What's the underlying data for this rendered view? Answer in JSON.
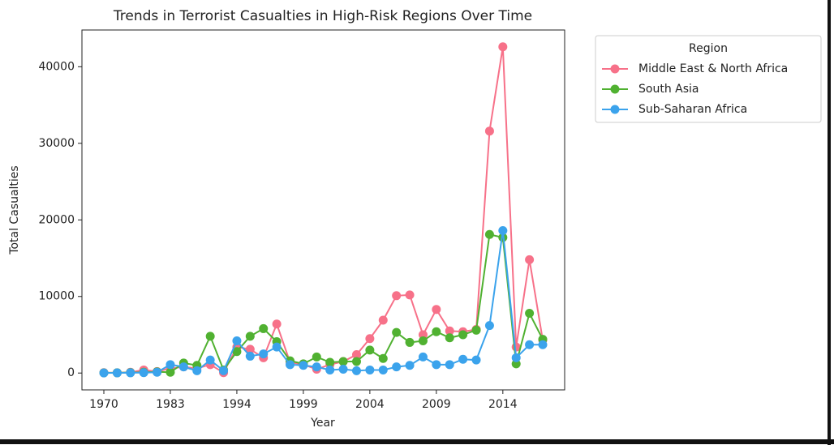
{
  "chart_data": {
    "type": "line",
    "title": "Trends in Terrorist Casualties in High-Risk Regions Over Time",
    "xlabel": "Year",
    "ylabel": "Total Casualties",
    "categories": [
      "1970",
      null,
      null,
      null,
      null,
      "1983",
      null,
      null,
      null,
      null,
      "1994",
      null,
      null,
      null,
      null,
      "1999",
      null,
      null,
      null,
      null,
      "2004",
      null,
      null,
      null,
      null,
      "2009",
      null,
      null,
      null,
      null,
      "2014",
      null,
      null,
      null
    ],
    "series": [
      {
        "name": "Middle East & North Africa",
        "color": "#f77189",
        "values": [
          50,
          30,
          100,
          400,
          200,
          600,
          800,
          600,
          1100,
          50,
          3400,
          3100,
          2000,
          6400,
          1400,
          1100,
          500,
          1100,
          1500,
          2400,
          4500,
          6900,
          10100,
          10200,
          5000,
          8300,
          5500,
          5400,
          5700,
          31600,
          42600,
          3400,
          14800,
          4300
        ]
      },
      {
        "name": "South Asia",
        "color": "#50b131",
        "values": [
          20,
          30,
          60,
          100,
          150,
          100,
          1300,
          1000,
          4800,
          400,
          2800,
          4800,
          5800,
          4100,
          1600,
          1200,
          2100,
          1400,
          1500,
          1500,
          3000,
          1900,
          5300,
          4000,
          4200,
          5400,
          4600,
          5000,
          5600,
          18100,
          17700,
          1200,
          7800,
          4400
        ]
      },
      {
        "name": "Sub-Saharan Africa",
        "color": "#3ba3ec",
        "values": [
          10,
          20,
          30,
          50,
          100,
          1100,
          800,
          300,
          1700,
          300,
          4200,
          2200,
          2500,
          3400,
          1100,
          1000,
          800,
          400,
          500,
          300,
          400,
          400,
          800,
          1000,
          2100,
          1100,
          1100,
          1800,
          1700,
          6200,
          18600,
          2000,
          3700,
          3700
        ]
      }
    ],
    "ylim": [
      -2200,
      44800
    ],
    "yticks": [
      0,
      10000,
      20000,
      30000,
      40000
    ],
    "legend_title": "Region",
    "legend": "outside-upper-right",
    "grid": false
  }
}
